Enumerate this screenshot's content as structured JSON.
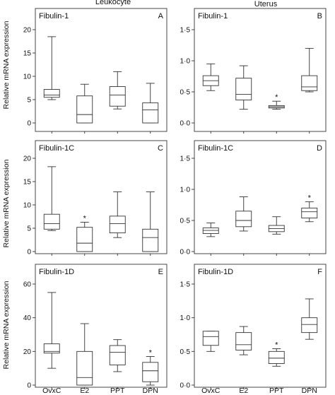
{
  "column_titles": [
    "Leukocyte",
    "Uterus"
  ],
  "y_axis_label": "Relative mRNA expression",
  "chart_data": [
    {
      "type": "box",
      "panel": "A",
      "title": "Fibulin-1",
      "column": "Leukocyte",
      "categories": [
        "OvxC",
        "E2",
        "PPT",
        "DPN"
      ],
      "ylim": [
        0,
        20
      ],
      "yticks": [
        0,
        5,
        10,
        15,
        20
      ],
      "ytick_labels": [
        "0",
        "5",
        "10",
        "15",
        "20"
      ],
      "boxes": [
        {
          "min": 5.0,
          "q1": 5.5,
          "median": 6.0,
          "q3": 7.2,
          "max": 18.5,
          "significant": false
        },
        {
          "min": 0.0,
          "q1": 0.0,
          "median": 1.8,
          "q3": 5.8,
          "max": 8.3,
          "significant": false
        },
        {
          "min": 3.0,
          "q1": 3.6,
          "median": 6.0,
          "q3": 7.8,
          "max": 11.0,
          "significant": false
        },
        {
          "min": 0.0,
          "q1": 0.0,
          "median": 2.8,
          "q3": 4.3,
          "max": 8.5,
          "significant": false
        }
      ]
    },
    {
      "type": "box",
      "panel": "B",
      "title": "Fibulin-1",
      "column": "Uterus",
      "categories": [
        "OvxC",
        "E2",
        "PPT",
        "DPN"
      ],
      "ylim": [
        0,
        1.5
      ],
      "yticks": [
        0,
        0.5,
        1.0,
        1.5
      ],
      "ytick_labels": [
        "0·0",
        "0·5",
        "1·0",
        "1·5"
      ],
      "boxes": [
        {
          "min": 0.52,
          "q1": 0.6,
          "median": 0.68,
          "q3": 0.76,
          "max": 0.95,
          "significant": false
        },
        {
          "min": 0.22,
          "q1": 0.37,
          "median": 0.46,
          "q3": 0.72,
          "max": 0.92,
          "significant": false
        },
        {
          "min": 0.22,
          "q1": 0.24,
          "median": 0.26,
          "q3": 0.28,
          "max": 0.35,
          "significant": true
        },
        {
          "min": 0.5,
          "q1": 0.52,
          "median": 0.58,
          "q3": 0.76,
          "max": 1.2,
          "significant": false
        }
      ]
    },
    {
      "type": "box",
      "panel": "C",
      "title": "Fibulin-1C",
      "column": "Leukocyte",
      "categories": [
        "OvxC",
        "E2",
        "PPT",
        "DPN"
      ],
      "ylim": [
        0,
        20
      ],
      "yticks": [
        0,
        5,
        10,
        15,
        20
      ],
      "ytick_labels": [
        "0",
        "5",
        "10",
        "15",
        "20"
      ],
      "boxes": [
        {
          "min": 4.5,
          "q1": 4.8,
          "median": 6.0,
          "q3": 8.0,
          "max": 18.2,
          "significant": false
        },
        {
          "min": 0.0,
          "q1": 0.0,
          "median": 1.8,
          "q3": 5.2,
          "max": 6.3,
          "significant": true
        },
        {
          "min": 3.0,
          "q1": 4.0,
          "median": 6.0,
          "q3": 7.6,
          "max": 12.8,
          "significant": false
        },
        {
          "min": 0.0,
          "q1": 0.0,
          "median": 3.0,
          "q3": 4.8,
          "max": 12.8,
          "significant": false
        }
      ]
    },
    {
      "type": "box",
      "panel": "D",
      "title": "Fibulin-1C",
      "column": "Uterus",
      "categories": [
        "OvxC",
        "E2",
        "PPT",
        "DPN"
      ],
      "ylim": [
        0,
        1.5
      ],
      "yticks": [
        0,
        0.5,
        1.0,
        1.5
      ],
      "ytick_labels": [
        "0·0",
        "0·5",
        "1·0",
        "1·5"
      ],
      "boxes": [
        {
          "min": 0.24,
          "q1": 0.29,
          "median": 0.34,
          "q3": 0.38,
          "max": 0.46,
          "significant": false
        },
        {
          "min": 0.33,
          "q1": 0.4,
          "median": 0.5,
          "q3": 0.65,
          "max": 0.88,
          "significant": false
        },
        {
          "min": 0.28,
          "q1": 0.32,
          "median": 0.37,
          "q3": 0.42,
          "max": 0.56,
          "significant": false
        },
        {
          "min": 0.48,
          "q1": 0.54,
          "median": 0.64,
          "q3": 0.7,
          "max": 0.8,
          "significant": true
        }
      ]
    },
    {
      "type": "box",
      "panel": "E",
      "title": "Fibulin-1D",
      "column": "Leukocyte",
      "categories": [
        "OvxC",
        "E2",
        "PPT",
        "DPN"
      ],
      "ylim": [
        0,
        60
      ],
      "yticks": [
        0,
        20,
        40,
        60
      ],
      "ytick_labels": [
        "0",
        "20",
        "40",
        "60"
      ],
      "boxes": [
        {
          "min": 10.0,
          "q1": 19.0,
          "median": 20.0,
          "q3": 24.5,
          "max": 55.0,
          "significant": false
        },
        {
          "min": 0.0,
          "q1": 0.0,
          "median": 4.5,
          "q3": 20.0,
          "max": 36.5,
          "significant": false
        },
        {
          "min": 8.0,
          "q1": 12.0,
          "median": 19.5,
          "q3": 23.5,
          "max": 27.0,
          "significant": false
        },
        {
          "min": 0.0,
          "q1": 2.0,
          "median": 8.5,
          "q3": 13.5,
          "max": 17.0,
          "significant": true
        }
      ]
    },
    {
      "type": "box",
      "panel": "F",
      "title": "Fibulin-1D",
      "column": "Uterus",
      "categories": [
        "OvxC",
        "E2",
        "PPT",
        "DPN"
      ],
      "ylim": [
        0,
        1.5
      ],
      "yticks": [
        0,
        0.5,
        1.0,
        1.5
      ],
      "ytick_labels": [
        "0·0",
        "0·5",
        "1·0",
        "1·5"
      ],
      "boxes": [
        {
          "min": 0.5,
          "q1": 0.59,
          "median": 0.72,
          "q3": 0.8,
          "max": 0.8,
          "significant": false
        },
        {
          "min": 0.45,
          "q1": 0.52,
          "median": 0.6,
          "q3": 0.78,
          "max": 0.87,
          "significant": false
        },
        {
          "min": 0.28,
          "q1": 0.32,
          "median": 0.4,
          "q3": 0.5,
          "max": 0.54,
          "significant": true
        },
        {
          "min": 0.68,
          "q1": 0.78,
          "median": 0.9,
          "q3": 1.0,
          "max": 1.28,
          "significant": false
        }
      ]
    }
  ]
}
